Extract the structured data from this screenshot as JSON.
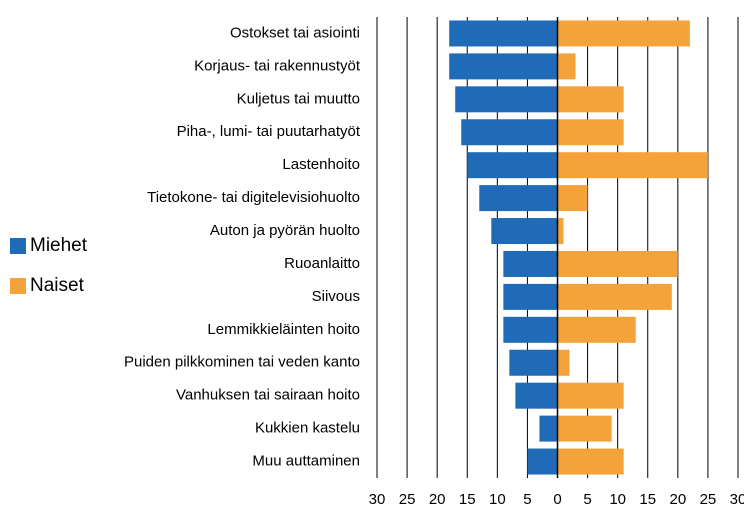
{
  "chart_data": {
    "type": "bar",
    "orientation": "horizontal",
    "categories": [
      "Ostokset tai asiointi",
      "Korjaus- tai rakennustyöt",
      "Kuljetus tai muutto",
      "Piha-, lumi- tai puutarhatyöt",
      "Lastenhoito",
      "Tietokone- tai digitelevisiohuolto",
      "Auton ja pyörän huolto",
      "Ruoanlaitto",
      "Siivous",
      "Lemmikkieläinten hoito",
      "Puiden pilkkominen tai veden kanto",
      "Vanhuksen tai sairaan hoito",
      "Kukkien kastelu",
      "Muu auttaminen"
    ],
    "series": [
      {
        "name": "Miehet",
        "color": "#1f6bb8",
        "values": [
          -18,
          -18,
          -17,
          -16,
          -15,
          -13,
          -11,
          -9,
          -9,
          -9,
          -8,
          -7,
          -3,
          -5
        ]
      },
      {
        "name": "Naiset",
        "color": "#f4a23a",
        "values": [
          22,
          3,
          11,
          11,
          25,
          5,
          1,
          20,
          19,
          13,
          2,
          11,
          9,
          11
        ]
      }
    ],
    "xlim": [
      -30,
      30
    ],
    "xticks": [
      {
        "value": -30,
        "label": "30"
      },
      {
        "value": -25,
        "label": "25"
      },
      {
        "value": -20,
        "label": "20"
      },
      {
        "value": -15,
        "label": "15"
      },
      {
        "value": -10,
        "label": "10"
      },
      {
        "value": -5,
        "label": "5"
      },
      0,
      5,
      10,
      15,
      20,
      25,
      30
    ],
    "grid": true,
    "legend": "left"
  }
}
